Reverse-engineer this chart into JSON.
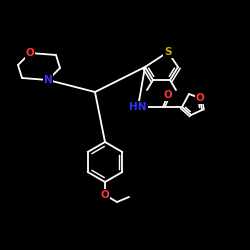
{
  "background": "#000000",
  "bond_color": "#ffffff",
  "atom_colors": {
    "O": "#ff3333",
    "N": "#3333ff",
    "S": "#ccaa00",
    "C": "#ffffff"
  },
  "font_size": 7.5,
  "fig_size": [
    2.5,
    2.5
  ],
  "dpi": 100
}
